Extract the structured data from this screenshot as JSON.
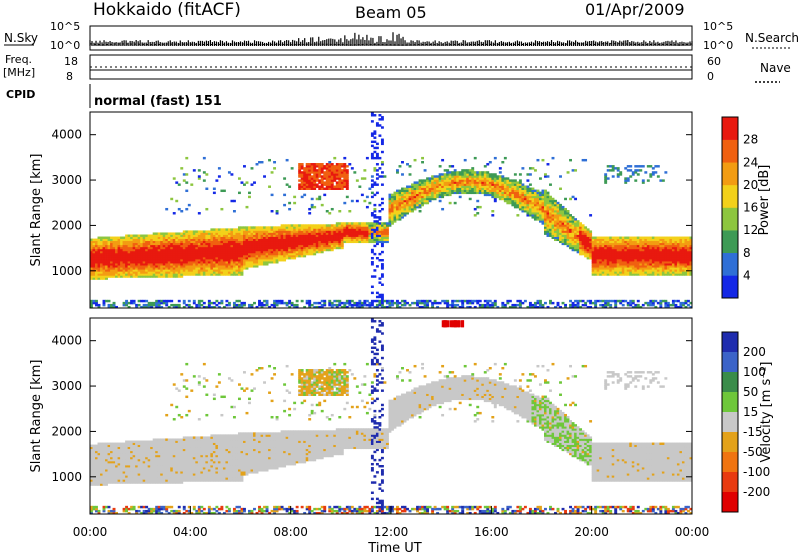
{
  "header": {
    "station": "Hokkaido (fitACF)",
    "beam": "Beam 05",
    "date": "01/Apr/2009"
  },
  "status_panels": {
    "nsky_label": "N.Sky",
    "nsky_ticks": [
      "10^5",
      "10^0"
    ],
    "nsearch_label": "N.Search",
    "nsearch_ticks": [
      "10^5",
      "10^0"
    ],
    "freq_label": "Freq.",
    "freq_unit": "[MHz]",
    "freq_ticks": [
      "18",
      "8"
    ],
    "nave_label": "Nave",
    "nave_ticks": [
      "60",
      "0"
    ],
    "cpid_label": "CPID",
    "cpid_text": "normal (fast) 151"
  },
  "chart_data": [
    {
      "type": "heatmap",
      "panel": "power",
      "xlabel": "",
      "ylabel": "Slant Range [km]",
      "y_ticks": [
        "1000",
        "2000",
        "3000",
        "4000"
      ],
      "ylim": [
        180,
        4500
      ],
      "colorbar_label": "Power [dB]",
      "colorbar_ticks": [
        "4",
        "8",
        "12",
        "16",
        "20",
        "24",
        "28"
      ],
      "colorbar_colors": [
        "#1428e6",
        "#2f6fd6",
        "#3d9a55",
        "#8dc63f",
        "#f3d11a",
        "#f39c12",
        "#f06010",
        "#e8190f"
      ]
    },
    {
      "type": "heatmap",
      "panel": "velocity",
      "xlabel": "Time UT",
      "ylabel": "Slant Range [km]",
      "y_ticks": [
        "1000",
        "2000",
        "3000",
        "4000"
      ],
      "ylim": [
        180,
        4500
      ],
      "x_ticks": [
        "00:00",
        "04:00",
        "08:00",
        "12:00",
        "16:00",
        "20:00",
        "00:00"
      ],
      "colorbar_label": "Velocity [m s⁻¹]",
      "colorbar_ticks": [
        "200",
        "100",
        "50",
        "15",
        "-15",
        "-50",
        "-100",
        "-200"
      ],
      "colorbar_colors": [
        "#1f2cae",
        "#3b63c8",
        "#3a8c4a",
        "#6ec73a",
        "#c8c8c8",
        "#e3a21a",
        "#f07410",
        "#e83a10",
        "#e00000"
      ]
    }
  ]
}
